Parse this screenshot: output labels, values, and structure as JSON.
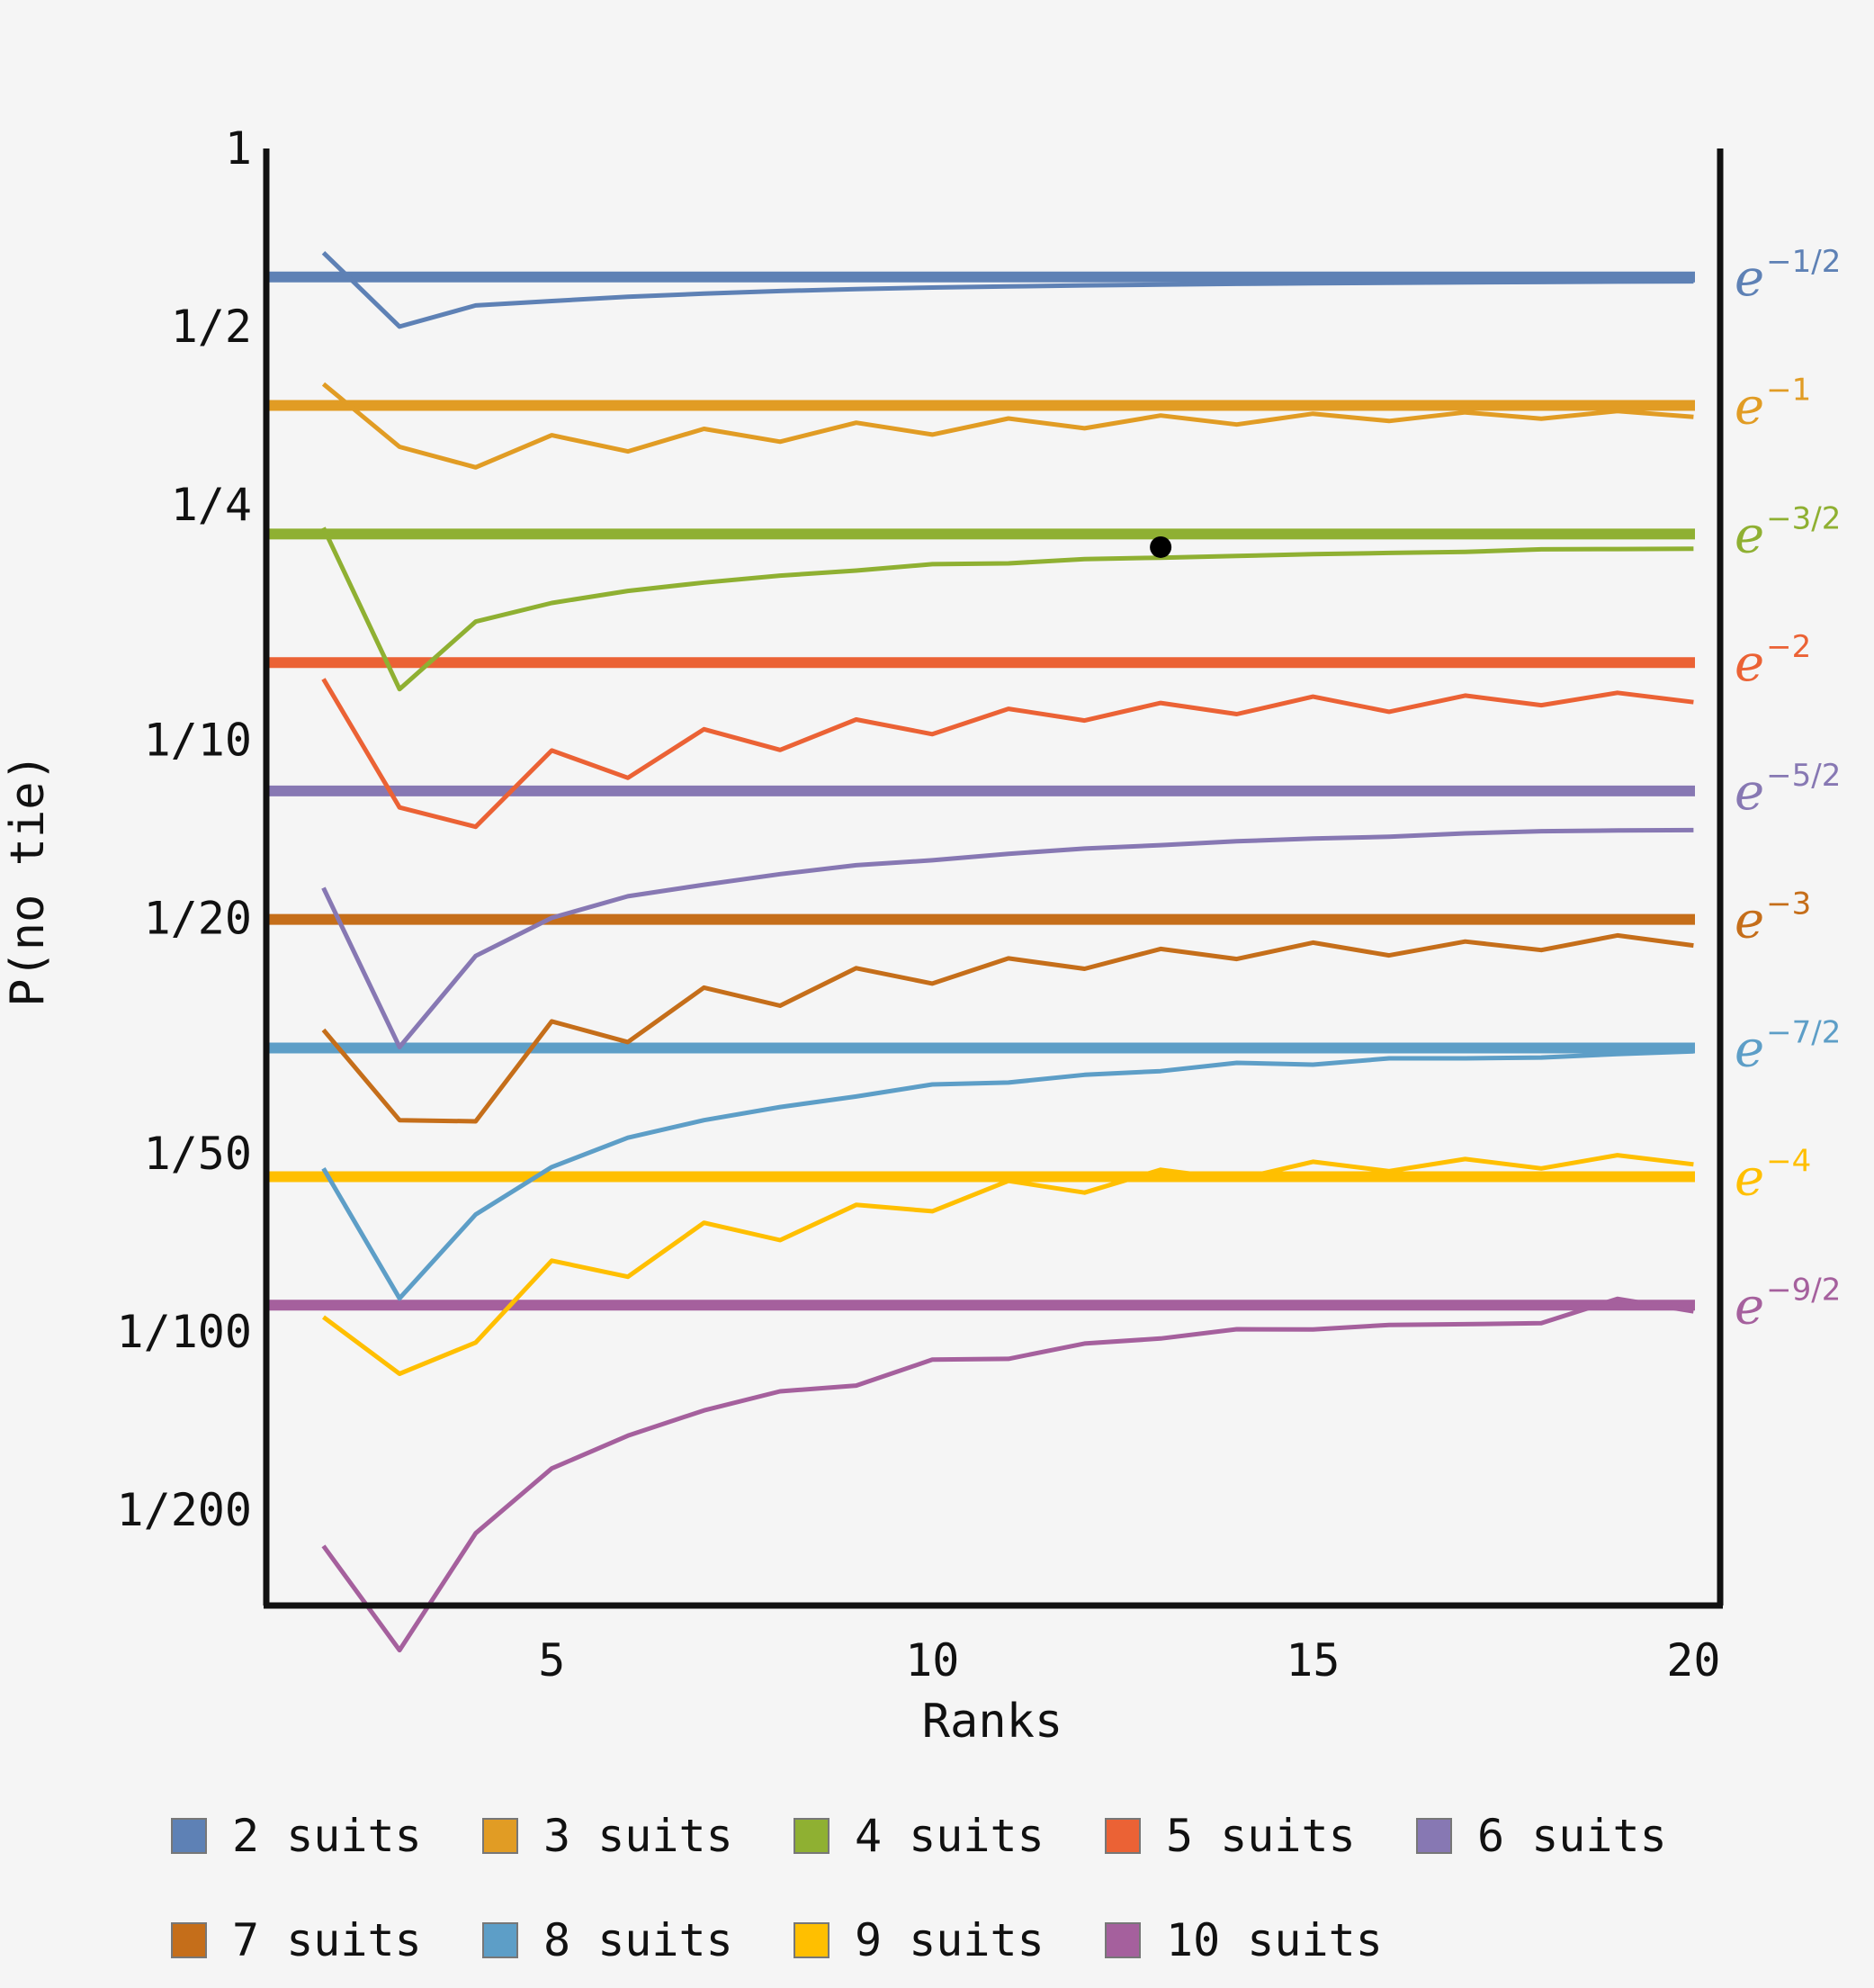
{
  "chart_data": {
    "type": "line",
    "xlabel": "Ranks",
    "ylabel": "P(no tie)",
    "y_scale": "log",
    "xlim": [
      1.25,
      20.35
    ],
    "ylim": [
      0.00345,
      1.0
    ],
    "x_ticks": [
      {
        "value": 5,
        "label": "5"
      },
      {
        "value": 10,
        "label": "10"
      },
      {
        "value": 15,
        "label": "15"
      },
      {
        "value": 20,
        "label": "20"
      }
    ],
    "y_ticks": [
      {
        "value": 1,
        "label": "1"
      },
      {
        "value": 0.5,
        "label": "1/2"
      },
      {
        "value": 0.25,
        "label": "1/4"
      },
      {
        "value": 0.1,
        "label": "1/10"
      },
      {
        "value": 0.05,
        "label": "1/20"
      },
      {
        "value": 0.02,
        "label": "1/50"
      },
      {
        "value": 0.01,
        "label": "1/100"
      },
      {
        "value": 0.005,
        "label": "1/200"
      }
    ],
    "x": [
      2,
      3,
      4,
      5,
      6,
      7,
      8,
      9,
      10,
      11,
      12,
      13,
      14,
      15,
      16,
      17,
      18,
      19,
      20
    ],
    "series": [
      {
        "name": "2 suits",
        "color": "#5e81b5",
        "asymptote": 0.6065,
        "asym_base": "e",
        "asym_exp": "−1/2",
        "values": [
          0.6667,
          0.5,
          0.5429,
          0.5524,
          0.5616,
          0.5684,
          0.5743,
          0.5786,
          0.5821,
          0.5847,
          0.5871,
          0.5888,
          0.5906,
          0.5918,
          0.593,
          0.594,
          0.5948,
          0.5957,
          0.5963
        ]
      },
      {
        "name": "3 suits",
        "color": "#e19c24",
        "asymptote": 0.3679,
        "asym_base": "e",
        "asym_exp": "−1",
        "values": [
          0.4,
          0.3132,
          0.2892,
          0.3277,
          0.3077,
          0.3359,
          0.3195,
          0.344,
          0.3285,
          0.3498,
          0.3367,
          0.3538,
          0.3416,
          0.3563,
          0.3463,
          0.3582,
          0.3495,
          0.36,
          0.352
        ]
      },
      {
        "name": "4 suits",
        "color": "#8fb032",
        "asymptote": 0.2231,
        "asym_base": "e",
        "asym_exp": "−3/2",
        "values": [
          0.2286,
          0.122,
          0.1587,
          0.1706,
          0.1788,
          0.1847,
          0.1898,
          0.1935,
          0.1984,
          0.199,
          0.2024,
          0.2035,
          0.2048,
          0.2063,
          0.2073,
          0.2081,
          0.2102,
          0.2104,
          0.2107
        ]
      },
      {
        "name": "5 suits",
        "color": "#eb6235",
        "asymptote": 0.1353,
        "asym_base": "e",
        "asym_exp": "−2",
        "values": [
          0.1269,
          0.077,
          0.0714,
          0.0961,
          0.0864,
          0.1044,
          0.0963,
          0.1084,
          0.1024,
          0.113,
          0.108,
          0.1156,
          0.1107,
          0.1185,
          0.1117,
          0.119,
          0.1146,
          0.1203,
          0.116
        ]
      },
      {
        "name": "6 suits",
        "color": "#8778b3",
        "asymptote": 0.0821,
        "asym_base": "e",
        "asym_exp": "−5/2",
        "values": [
          0.0563,
          0.0303,
          0.0432,
          0.0501,
          0.0545,
          0.057,
          0.0594,
          0.0615,
          0.0627,
          0.0643,
          0.0656,
          0.0665,
          0.0675,
          0.0682,
          0.0687,
          0.0696,
          0.0702,
          0.0704,
          0.0705
        ]
      },
      {
        "name": "7 suits",
        "color": "#c56e1a",
        "asymptote": 0.0498,
        "asym_base": "e",
        "asym_exp": "−3",
        "values": [
          0.0324,
          0.0228,
          0.0227,
          0.0335,
          0.0309,
          0.0382,
          0.0356,
          0.0412,
          0.0388,
          0.0428,
          0.0411,
          0.0444,
          0.0427,
          0.0455,
          0.0433,
          0.0457,
          0.0442,
          0.0468,
          0.045
        ]
      },
      {
        "name": "8 suits",
        "color": "#5d9ec7",
        "asymptote": 0.0302,
        "asym_base": "e",
        "asym_exp": "−7/2",
        "values": [
          0.0189,
          0.0114,
          0.0158,
          0.019,
          0.0213,
          0.0228,
          0.024,
          0.025,
          0.0262,
          0.0264,
          0.0272,
          0.0276,
          0.0285,
          0.0283,
          0.029,
          0.029,
          0.0291,
          0.0295,
          0.0298
        ]
      },
      {
        "name": "9 suits",
        "color": "#ffbf00",
        "asymptote": 0.0183,
        "asym_base": "e",
        "asym_exp": "−4",
        "values": [
          0.0106,
          0.0085,
          0.0096,
          0.0132,
          0.0124,
          0.0153,
          0.0143,
          0.0164,
          0.016,
          0.018,
          0.0172,
          0.0188,
          0.0181,
          0.0194,
          0.0187,
          0.0196,
          0.0189,
          0.0199,
          0.0192
        ]
      },
      {
        "name": "10 suits",
        "color": "#a5609d",
        "asymptote": 0.0111,
        "asym_base": "e",
        "asym_exp": "−9/2",
        "values": [
          0.00435,
          0.0029,
          0.00457,
          0.00588,
          0.00668,
          0.00737,
          0.00794,
          0.00812,
          0.00898,
          0.00901,
          0.00956,
          0.00975,
          0.01011,
          0.0101,
          0.01028,
          0.01031,
          0.01035,
          0.01138,
          0.01084
        ]
      }
    ],
    "marker": {
      "x": 13,
      "y": 0.212,
      "color": "#000000"
    },
    "grid": false,
    "legend_position": "bottom"
  }
}
